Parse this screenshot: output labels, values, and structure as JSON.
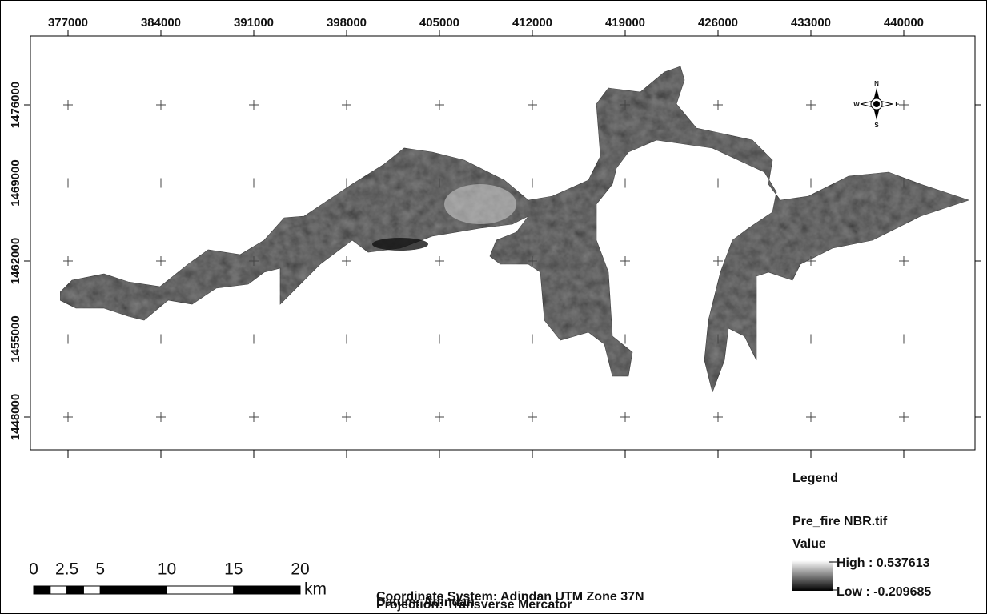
{
  "map": {
    "xticks": [
      377000,
      384000,
      391000,
      398000,
      405000,
      412000,
      419000,
      426000,
      433000,
      440000
    ],
    "yticks": [
      1476000,
      1469000,
      1462000,
      1455000,
      1448000
    ],
    "compass": {
      "n": "N",
      "s": "S",
      "w": "W",
      "e": "E"
    },
    "scale_bar": {
      "ticks": [
        0,
        2.5,
        5,
        10,
        15,
        20
      ],
      "unit": "km"
    },
    "info": [
      "Coordinate System: Adindan UTM Zone 37N",
      "Projection: Transverse Mercator",
      "Datum: Adindan"
    ],
    "legend": {
      "title": "Legend",
      "layer": "Pre_fire NBR.tif",
      "field": "Value",
      "high": "High : 0.537613",
      "low": "Low : -0.209685"
    }
  }
}
